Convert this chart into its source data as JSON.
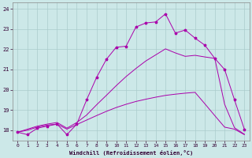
{
  "background_color": "#cce8e8",
  "grid_color": "#aacccc",
  "line_color": "#aa00aa",
  "xlabel": "Windchill (Refroidissement éolien,°C)",
  "xlim": [
    -0.5,
    23.5
  ],
  "ylim": [
    17.5,
    24.3
  ],
  "x_ticks": [
    0,
    1,
    2,
    3,
    4,
    5,
    6,
    7,
    8,
    9,
    10,
    11,
    12,
    13,
    14,
    15,
    16,
    17,
    18,
    19,
    20,
    21,
    22,
    23
  ],
  "y_ticks": [
    18,
    19,
    20,
    21,
    22,
    23,
    24
  ],
  "line1_x": [
    0,
    1,
    2,
    3,
    4,
    5,
    6,
    7,
    8,
    9,
    10,
    11,
    12,
    13,
    14,
    15,
    16,
    17,
    18,
    19,
    20,
    21,
    22,
    23
  ],
  "line1_y": [
    17.9,
    17.78,
    18.1,
    18.2,
    18.3,
    17.78,
    18.3,
    19.5,
    20.6,
    21.5,
    22.1,
    22.15,
    23.1,
    23.3,
    23.35,
    23.75,
    22.8,
    22.95,
    22.55,
    22.2,
    21.55,
    21.0,
    19.5,
    18.05
  ],
  "line2_x": [
    0,
    1,
    2,
    3,
    4,
    5,
    6,
    7,
    8,
    9,
    10,
    11,
    12,
    13,
    14,
    15,
    16,
    17,
    18,
    19,
    20,
    21,
    22,
    23
  ],
  "line2_y": [
    17.9,
    18.0,
    18.15,
    18.25,
    18.3,
    18.05,
    18.28,
    18.5,
    18.72,
    18.93,
    19.12,
    19.28,
    19.42,
    19.53,
    19.63,
    19.72,
    19.78,
    19.83,
    19.87,
    19.3,
    18.72,
    18.15,
    18.05,
    17.78
  ],
  "line3_x": [
    0,
    1,
    2,
    3,
    4,
    5,
    6,
    7,
    8,
    9,
    10,
    11,
    12,
    13,
    14,
    15,
    16,
    17,
    18,
    19,
    20,
    21,
    22,
    23
  ],
  "line3_y": [
    17.9,
    18.05,
    18.2,
    18.3,
    18.38,
    18.1,
    18.38,
    18.75,
    19.25,
    19.72,
    20.2,
    20.65,
    21.05,
    21.42,
    21.72,
    22.02,
    21.82,
    21.65,
    21.7,
    21.62,
    21.55,
    19.28,
    18.12,
    17.8
  ]
}
